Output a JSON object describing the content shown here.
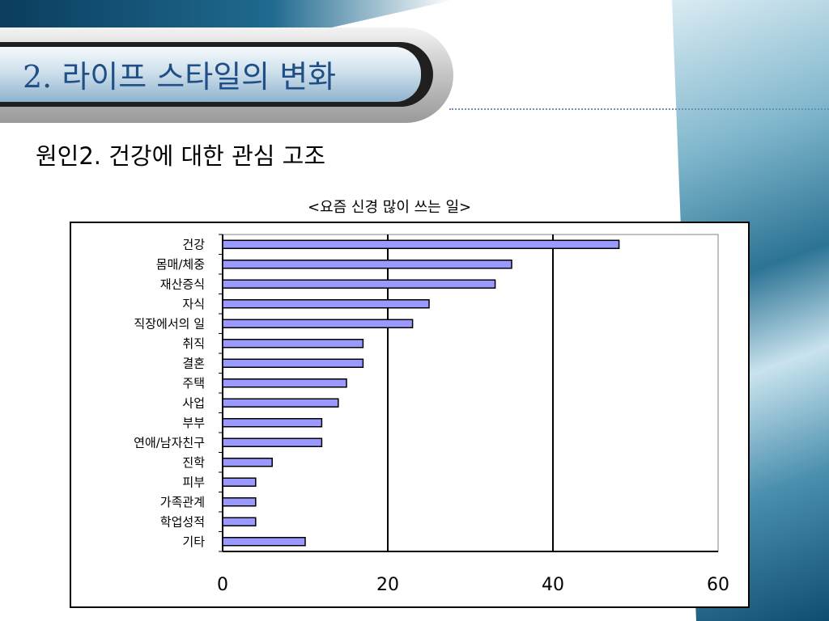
{
  "slide": {
    "title": "2. 라이프 스타일의 변화",
    "subtitle": "원인2. 건강에 대한 관심 고조"
  },
  "colors": {
    "bar_fill": "#9999ff",
    "bar_stroke": "#000000",
    "title_text": "#1f4f86"
  },
  "chart_data": {
    "type": "bar",
    "orientation": "horizontal",
    "title": "<요즘 신경 많이 쓰는 일>",
    "categories": [
      "건강",
      "몸매/체중",
      "재산증식",
      "자식",
      "직장에서의 일",
      "취직",
      "결혼",
      "주택",
      "사업",
      "부부",
      "연애/남자친구",
      "진학",
      "피부",
      "가족관계",
      "학업성적",
      "기타"
    ],
    "values": [
      48,
      35,
      33,
      25,
      23,
      17,
      17,
      15,
      14,
      12,
      12,
      6,
      4,
      4,
      4,
      10
    ],
    "xlim": [
      0,
      60
    ],
    "xticks": [
      "0",
      "20",
      "40",
      "60"
    ],
    "xlabel": "",
    "ylabel": "",
    "grid": true
  }
}
